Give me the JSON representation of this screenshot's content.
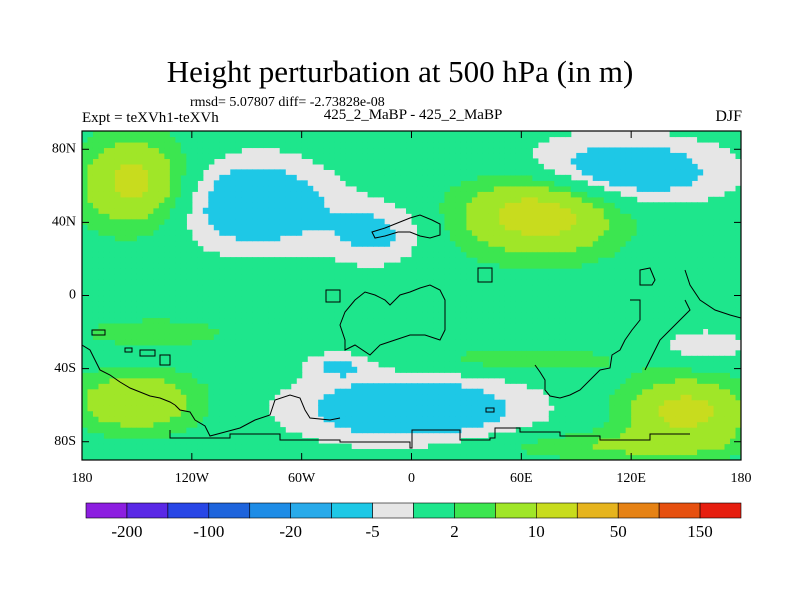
{
  "header": {
    "title": "Height perturbation at 500 hPa (in m)",
    "stats": "rmsd= 5.07807 diff= -2.73828e-08",
    "expt_label": "Expt = teXVh1-teXVh",
    "expt_name": "425_2_MaBP - 425_2_MaBP",
    "season": "DJF"
  },
  "chart_data": {
    "type": "heatmap",
    "title": "Height perturbation at 500 hPa (in m)",
    "projection": "cylindrical-equidistant",
    "x_range": [
      -180,
      180
    ],
    "y_range": [
      -90,
      90
    ],
    "x_ticks": [
      {
        "value": -180,
        "label": "180"
      },
      {
        "value": -120,
        "label": "120W"
      },
      {
        "value": -60,
        "label": "60W"
      },
      {
        "value": 0,
        "label": "0"
      },
      {
        "value": 60,
        "label": "60E"
      },
      {
        "value": 120,
        "label": "120E"
      },
      {
        "value": 180,
        "label": "180"
      }
    ],
    "y_ticks": [
      {
        "value": 80,
        "label": "80N"
      },
      {
        "value": 40,
        "label": "40N"
      },
      {
        "value": 0,
        "label": "0"
      },
      {
        "value": -40,
        "label": "40S"
      },
      {
        "value": -80,
        "label": "80S"
      }
    ],
    "contour_levels": [
      -200,
      -150,
      -100,
      -50,
      -20,
      -10,
      -5,
      -2,
      2,
      5,
      10,
      20,
      50,
      100,
      150,
      200
    ],
    "colorbar_labels": [
      {
        "level": -200,
        "label": "-200"
      },
      {
        "level": -100,
        "label": "-100"
      },
      {
        "level": -20,
        "label": "-20"
      },
      {
        "level": -5,
        "label": "-5"
      },
      {
        "level": 2,
        "label": "2"
      },
      {
        "level": 10,
        "label": "10"
      },
      {
        "level": 50,
        "label": "50"
      },
      {
        "level": 150,
        "label": "150"
      }
    ],
    "colors": [
      "#8c1ee0",
      "#5a28e6",
      "#2846e6",
      "#1e64dc",
      "#1e8ce6",
      "#28aaea",
      "#1ec8e6",
      "#e6e6e6",
      "#1ee68c",
      "#3ce650",
      "#a0e628",
      "#c8dc1e",
      "#e6b41e",
      "#e68214",
      "#e6500f",
      "#e61e0f"
    ],
    "blobs": [
      {
        "lon": -152,
        "lat": 62,
        "lon_radius": 28,
        "lat_radius": 24,
        "value": 12
      },
      {
        "lon": -85,
        "lat": 50,
        "lon_radius": 40,
        "lat_radius": 24,
        "value": -10
      },
      {
        "lon": -20,
        "lat": 34,
        "lon_radius": 26,
        "lat_radius": 17,
        "value": -6
      },
      {
        "lon": 70,
        "lat": 46,
        "lon_radius": 42,
        "lat_radius": 23,
        "value": 14
      },
      {
        "lon": 110,
        "lat": 68,
        "lon_radius": 58,
        "lat_radius": 18,
        "value": -10
      },
      {
        "lon": -150,
        "lat": -58,
        "lon_radius": 34,
        "lat_radius": 16,
        "value": 10
      },
      {
        "lon": 0,
        "lat": -62,
        "lon_radius": 62,
        "lat_radius": 18,
        "value": -10
      },
      {
        "lon": 150,
        "lat": -63,
        "lon_radius": 34,
        "lat_radius": 18,
        "value": 12
      },
      {
        "lon": 60,
        "lat": -35,
        "lon_radius": 55,
        "lat_radius": 8,
        "value": 4
      },
      {
        "lon": -140,
        "lat": -20,
        "lon_radius": 42,
        "lat_radius": 8,
        "value": 4
      },
      {
        "lon": 160,
        "lat": -28,
        "lon_radius": 22,
        "lat_radius": 9,
        "value": -5
      },
      {
        "lon": -40,
        "lat": -38,
        "lon_radius": 18,
        "lat_radius": 7,
        "value": -5
      },
      {
        "lon": 110,
        "lat": -82,
        "lon_radius": 70,
        "lat_radius": 8,
        "value": 5
      }
    ]
  }
}
